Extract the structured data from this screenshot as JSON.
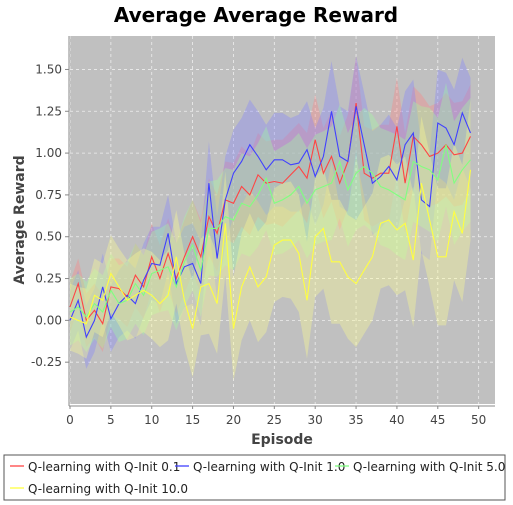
{
  "chart_data": {
    "type": "line",
    "title": "Average Average Reward",
    "xlabel": "Episode",
    "ylabel": "Average Reward",
    "xlim": [
      0,
      52
    ],
    "ylim": [
      -0.5,
      1.7
    ],
    "x_ticks": [
      0,
      5,
      10,
      15,
      20,
      25,
      30,
      35,
      40,
      45,
      50
    ],
    "y_ticks": [
      -0.25,
      0.0,
      0.25,
      0.5,
      0.75,
      1.0,
      1.25,
      1.5
    ],
    "y_tick_labels": [
      "-0.25",
      "0.00",
      "0.25",
      "0.50",
      "0.75",
      "1.00",
      "1.25",
      "1.50"
    ],
    "grid": true,
    "legend_position": "bottom",
    "plot_background": "#c0c0c0",
    "x": [
      0,
      1,
      2,
      3,
      4,
      5,
      6,
      7,
      8,
      9,
      10,
      11,
      12,
      13,
      14,
      15,
      16,
      17,
      18,
      19,
      20,
      21,
      22,
      23,
      24,
      25,
      26,
      27,
      28,
      29,
      30,
      31,
      32,
      33,
      34,
      35,
      36,
      37,
      38,
      39,
      40,
      41,
      42,
      43,
      44,
      45,
      46,
      47,
      48,
      49
    ],
    "series": [
      {
        "name": "Q-learning with Q-Init 0.1",
        "color": "#ff4444",
        "band_color": "#ff8080",
        "values": [
          0.08,
          0.22,
          0.0,
          0.06,
          -0.02,
          0.2,
          0.19,
          0.14,
          0.27,
          0.2,
          0.38,
          0.25,
          0.4,
          0.25,
          0.38,
          0.5,
          0.38,
          0.62,
          0.52,
          0.72,
          0.7,
          0.8,
          0.75,
          0.87,
          0.82,
          0.83,
          0.82,
          0.87,
          0.92,
          0.85,
          1.08,
          0.88,
          0.98,
          0.82,
          0.95,
          1.3,
          0.88,
          0.85,
          0.88,
          0.88,
          1.16,
          0.82,
          1.1,
          1.05,
          0.98,
          1.0,
          1.05,
          0.99,
          1.0,
          1.1
        ],
        "spread": [
          0.15,
          0.15,
          0.16,
          0.16,
          0.17,
          0.17,
          0.18,
          0.18,
          0.19,
          0.19,
          0.2,
          0.2,
          0.21,
          0.21,
          0.22,
          0.22,
          0.22,
          0.23,
          0.23,
          0.23,
          0.24,
          0.24,
          0.24,
          0.25,
          0.25,
          0.25,
          0.26,
          0.26,
          0.26,
          0.27,
          0.27,
          0.27,
          0.27,
          0.28,
          0.28,
          0.28,
          0.28,
          0.29,
          0.29,
          0.29,
          0.29,
          0.3,
          0.3,
          0.3,
          0.3,
          0.3,
          0.31,
          0.31,
          0.31,
          0.31
        ]
      },
      {
        "name": "Q-learning with Q-Init 1.0",
        "color": "#4040ff",
        "band_color": "#8080ff",
        "values": [
          0.0,
          0.12,
          -0.1,
          0.0,
          0.2,
          0.01,
          0.1,
          0.15,
          0.1,
          0.24,
          0.34,
          0.33,
          0.52,
          0.22,
          0.32,
          0.34,
          0.22,
          0.82,
          0.37,
          0.72,
          0.88,
          0.95,
          1.05,
          0.98,
          0.9,
          0.96,
          0.96,
          0.93,
          0.94,
          1.02,
          0.86,
          0.98,
          1.25,
          0.98,
          0.95,
          1.28,
          1.05,
          0.82,
          0.86,
          0.92,
          0.84,
          1.05,
          1.12,
          0.72,
          0.68,
          1.18,
          1.15,
          1.05,
          1.24,
          1.12
        ],
        "spread": [
          0.18,
          0.18,
          0.19,
          0.19,
          0.2,
          0.2,
          0.2,
          0.21,
          0.21,
          0.22,
          0.22,
          0.23,
          0.23,
          0.24,
          0.24,
          0.24,
          0.25,
          0.25,
          0.25,
          0.26,
          0.26,
          0.26,
          0.27,
          0.27,
          0.27,
          0.28,
          0.28,
          0.28,
          0.29,
          0.29,
          0.29,
          0.29,
          0.3,
          0.3,
          0.3,
          0.3,
          0.31,
          0.31,
          0.31,
          0.31,
          0.31,
          0.32,
          0.32,
          0.32,
          0.32,
          0.32,
          0.33,
          0.33,
          0.33,
          0.33
        ]
      },
      {
        "name": "Q-learning with Q-Init 5.0",
        "color": "#80ff80",
        "band_color": "#a0ffa0",
        "values": [
          0.05,
          0.08,
          0.02,
          0.1,
          0.05,
          0.18,
          0.1,
          0.12,
          0.22,
          0.15,
          0.28,
          0.3,
          0.32,
          0.2,
          0.35,
          0.45,
          0.3,
          0.55,
          0.55,
          0.62,
          0.6,
          0.7,
          0.68,
          0.75,
          0.85,
          0.7,
          0.72,
          0.75,
          0.8,
          0.7,
          0.78,
          0.8,
          0.82,
          0.95,
          0.78,
          0.88,
          0.92,
          0.88,
          0.8,
          0.78,
          0.75,
          0.72,
          0.95,
          0.92,
          0.9,
          0.84,
          1.05,
          0.82,
          0.9,
          0.96
        ],
        "spread": [
          0.2,
          0.2,
          0.21,
          0.21,
          0.22,
          0.22,
          0.23,
          0.23,
          0.24,
          0.24,
          0.25,
          0.25,
          0.26,
          0.26,
          0.27,
          0.27,
          0.28,
          0.28,
          0.29,
          0.29,
          0.3,
          0.3,
          0.3,
          0.31,
          0.31,
          0.31,
          0.32,
          0.32,
          0.32,
          0.33,
          0.33,
          0.33,
          0.34,
          0.34,
          0.34,
          0.34,
          0.35,
          0.35,
          0.35,
          0.35,
          0.36,
          0.36,
          0.36,
          0.36,
          0.37,
          0.37,
          0.37,
          0.37,
          0.37,
          0.37
        ]
      },
      {
        "name": "Q-learning with Q-Init 10.0",
        "color": "#ffff40",
        "band_color": "#ffff90",
        "values": [
          0.02,
          0.0,
          -0.02,
          0.15,
          0.12,
          0.28,
          0.2,
          0.12,
          0.15,
          0.18,
          0.15,
          0.1,
          0.15,
          0.38,
          0.12,
          -0.05,
          0.2,
          0.22,
          0.1,
          0.58,
          -0.05,
          0.2,
          0.32,
          0.2,
          0.26,
          0.45,
          0.48,
          0.48,
          0.4,
          0.12,
          0.5,
          0.55,
          0.35,
          0.35,
          0.26,
          0.22,
          0.3,
          0.38,
          0.58,
          0.6,
          0.54,
          0.58,
          0.36,
          0.82,
          0.6,
          0.38,
          0.38,
          0.65,
          0.52,
          0.9
        ],
        "spread": [
          0.2,
          0.2,
          0.21,
          0.22,
          0.22,
          0.23,
          0.23,
          0.24,
          0.25,
          0.25,
          0.26,
          0.26,
          0.27,
          0.28,
          0.28,
          0.29,
          0.29,
          0.3,
          0.3,
          0.31,
          0.31,
          0.32,
          0.32,
          0.33,
          0.33,
          0.34,
          0.34,
          0.35,
          0.35,
          0.35,
          0.36,
          0.36,
          0.37,
          0.37,
          0.37,
          0.38,
          0.38,
          0.38,
          0.39,
          0.39,
          0.39,
          0.4,
          0.4,
          0.4,
          0.4,
          0.41,
          0.41,
          0.41,
          0.41,
          0.42
        ]
      }
    ]
  }
}
